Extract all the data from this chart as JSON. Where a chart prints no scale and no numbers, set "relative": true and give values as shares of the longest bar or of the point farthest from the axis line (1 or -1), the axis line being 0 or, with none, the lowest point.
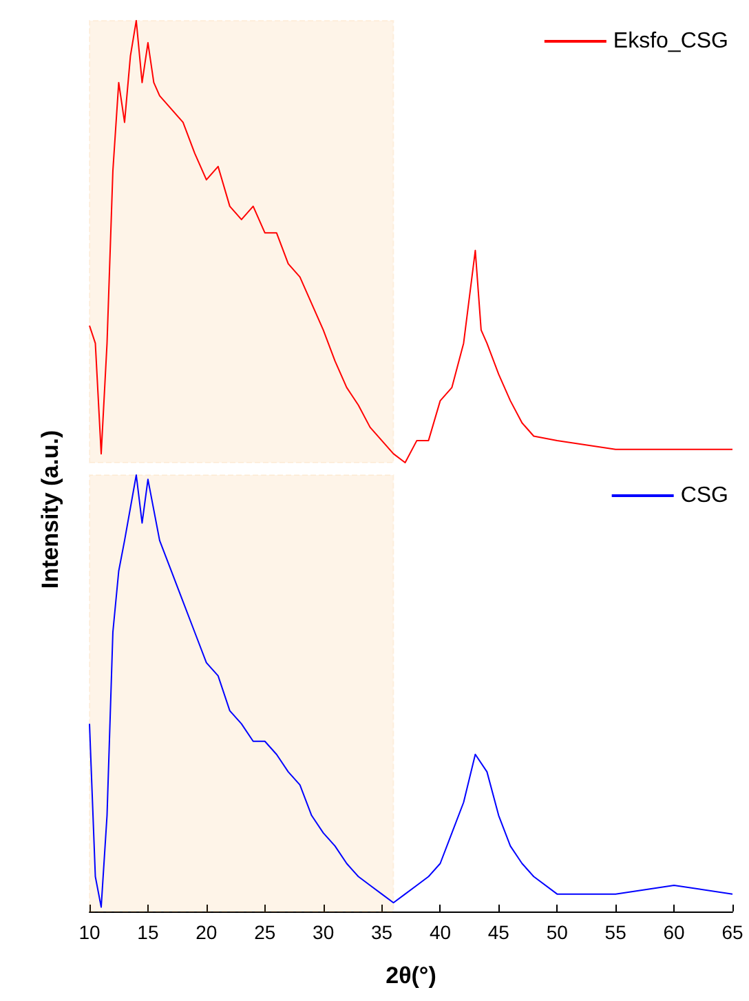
{
  "chart_data": [
    {
      "type": "line",
      "relative": true,
      "xlim": [
        10,
        65
      ],
      "xticks": [
        10,
        15,
        20,
        25,
        30,
        35,
        40,
        45,
        50,
        55,
        60,
        65
      ],
      "tick_labels": false,
      "ylabel": "Intensity (a.u.)",
      "legend": "top right",
      "grid": false,
      "marker": "none",
      "bands": [
        {
          "axis": "x",
          "from": 10,
          "to": 36,
          "color": "#f5a142"
        }
      ],
      "series": [
        {
          "name": "Eksfo_CSG",
          "color": "#ff0000",
          "x": [
            10,
            10.5,
            11,
            11.5,
            12,
            12.5,
            13,
            13.5,
            14,
            14.5,
            15,
            15.5,
            16,
            17,
            18,
            19,
            20,
            21,
            22,
            23,
            24,
            25,
            26,
            27,
            28,
            29,
            30,
            31,
            32,
            33,
            34,
            35,
            36,
            37,
            38,
            39,
            40,
            41,
            42,
            43,
            43.5,
            44,
            45,
            46,
            47,
            48,
            50,
            55,
            60,
            65
          ],
          "values": [
            0.31,
            0.27,
            0.02,
            0.27,
            0.66,
            0.86,
            0.77,
            0.92,
            1,
            0.86,
            0.95,
            0.86,
            0.83,
            0.8,
            0.77,
            0.7,
            0.64,
            0.67,
            0.58,
            0.55,
            0.58,
            0.52,
            0.52,
            0.45,
            0.42,
            0.36,
            0.3,
            0.23,
            0.17,
            0.13,
            0.08,
            0.05,
            0.02,
            0,
            0.05,
            0.05,
            0.14,
            0.17,
            0.27,
            0.48,
            0.3,
            0.27,
            0.2,
            0.14,
            0.09,
            0.06,
            0.05,
            0.03,
            0.03,
            0.03
          ]
        }
      ]
    },
    {
      "type": "line",
      "relative": true,
      "xlim": [
        10,
        65
      ],
      "xticks": [
        10,
        15,
        20,
        25,
        30,
        35,
        40,
        45,
        50,
        55,
        60,
        65
      ],
      "tick_labels": "x",
      "xlabel": "2θ(°)",
      "legend": "top right",
      "grid": false,
      "marker": "none",
      "bands": [
        {
          "axis": "x",
          "from": 10,
          "to": 36,
          "color": "#f5a142"
        }
      ],
      "series": [
        {
          "name": "CSG",
          "color": "#0000ff",
          "x": [
            10,
            10.5,
            11,
            11.5,
            12,
            12.5,
            13,
            14,
            14.5,
            15,
            16,
            17,
            18,
            19,
            20,
            21,
            22,
            23,
            24,
            25,
            26,
            27,
            28,
            29,
            30,
            31,
            32,
            33,
            34,
            35,
            36,
            37,
            38,
            39,
            40,
            41,
            42,
            43,
            44,
            45,
            46,
            47,
            48,
            50,
            55,
            60,
            65
          ],
          "values": [
            0.43,
            0.08,
            0.01,
            0.22,
            0.64,
            0.78,
            0.85,
            1,
            0.89,
            0.99,
            0.85,
            0.78,
            0.71,
            0.64,
            0.57,
            0.54,
            0.46,
            0.43,
            0.39,
            0.39,
            0.36,
            0.32,
            0.29,
            0.22,
            0.18,
            0.15,
            0.11,
            0.08,
            0.06,
            0.04,
            0.02,
            0.04,
            0.06,
            0.08,
            0.11,
            0.18,
            0.25,
            0.36,
            0.32,
            0.22,
            0.15,
            0.11,
            0.08,
            0.04,
            0.04,
            0.06,
            0.04
          ]
        }
      ]
    }
  ]
}
